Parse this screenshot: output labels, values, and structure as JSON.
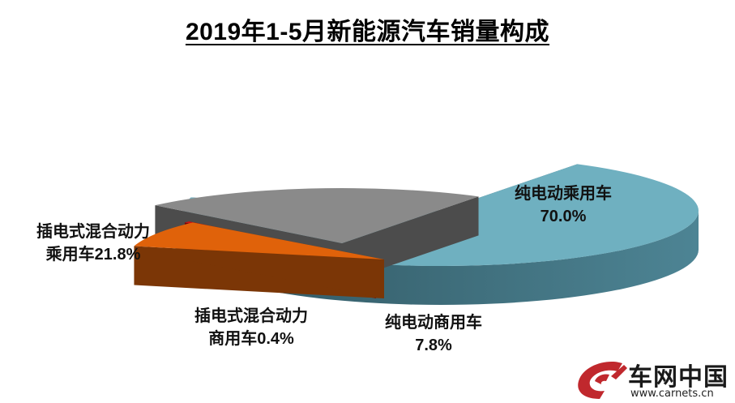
{
  "chart_data": {
    "type": "pie",
    "title": "2019年1-5月新能源汽车销量构成",
    "slices": [
      {
        "name": "纯电动乘用车",
        "value": 70.0,
        "value_label": "70.0%",
        "color": "#6fb0c0"
      },
      {
        "name": "纯电动商用车",
        "value": 7.8,
        "value_label": "7.8%",
        "color": "#e0620a"
      },
      {
        "name": "插电式混合动力商用车",
        "value": 0.4,
        "value_label": "0.4%",
        "color": "#d01010"
      },
      {
        "name": "插电式混合动力乘用车",
        "value": 21.8,
        "value_label": "21.8%",
        "color": "#8a8a8a"
      }
    ]
  },
  "labels": {
    "bev_passenger_name": "纯电动乘用车",
    "bev_passenger_value": "70.0%",
    "bev_commercial_name": "纯电动商用车",
    "bev_commercial_value": "7.8%",
    "phev_commercial_name": "插电式混合动力",
    "phev_commercial_rest": "商用车0.4%",
    "phev_passenger_name": "插电式混合动力",
    "phev_passenger_rest": "乘用车21.8%"
  },
  "logo": {
    "name": "车网中国",
    "url": "www.carnets.cn"
  }
}
